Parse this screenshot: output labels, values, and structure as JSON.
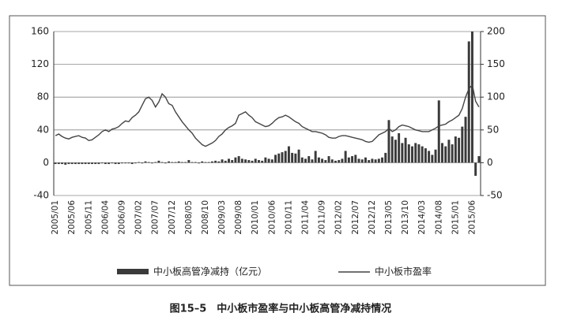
{
  "chart_data": {
    "type": "bar-line",
    "caption": "图15–5　中小板市盈率与中小板高管净减持情况",
    "categories": [
      "2005/01",
      null,
      null,
      null,
      null,
      "2005/06",
      null,
      null,
      null,
      null,
      "2005/11",
      null,
      null,
      null,
      null,
      "2006/04",
      null,
      null,
      null,
      null,
      "2006/09",
      null,
      null,
      null,
      null,
      "2007/02",
      null,
      null,
      null,
      null,
      "2007/07",
      null,
      null,
      null,
      null,
      "2007/12",
      null,
      null,
      null,
      null,
      "2008/05",
      null,
      null,
      null,
      null,
      "2008/10",
      null,
      null,
      null,
      null,
      "2009/03",
      null,
      null,
      null,
      null,
      "2009/08",
      null,
      null,
      null,
      null,
      "2010/01",
      null,
      null,
      null,
      null,
      "2010/06",
      null,
      null,
      null,
      null,
      "2010/11",
      null,
      null,
      null,
      null,
      "2011/04",
      null,
      null,
      null,
      null,
      "2011/09",
      null,
      null,
      null,
      null,
      "2012/02",
      null,
      null,
      null,
      null,
      "2012/07",
      null,
      null,
      null,
      null,
      "2012/12",
      null,
      null,
      null,
      null,
      "2013/05",
      null,
      null,
      null,
      null,
      "2013/10",
      null,
      null,
      null,
      null,
      "2014/03",
      null,
      null,
      null,
      null,
      "2014/08",
      null,
      null,
      null,
      null,
      "2015/01",
      null,
      null,
      null,
      null,
      "2015/06",
      null,
      null
    ],
    "series": [
      {
        "name": "中小板高管净减持（亿元）",
        "kind": "bar",
        "axis": "y2",
        "color": "#3a3a3a",
        "values": [
          -2,
          -2,
          -2,
          -3,
          -2,
          -2,
          -2,
          -2,
          -2,
          -2,
          -2,
          -2,
          -2,
          -2,
          -1,
          -2,
          -2,
          -1,
          -2,
          -2,
          -1,
          -1,
          -1,
          -2,
          -1,
          1,
          -1,
          2,
          1,
          -1,
          1,
          3,
          1,
          -1,
          2,
          1,
          1,
          2,
          1,
          1,
          4,
          1,
          1,
          -1,
          2,
          1,
          1,
          2,
          3,
          2,
          5,
          3,
          6,
          4,
          8,
          10,
          6,
          5,
          4,
          3,
          6,
          4,
          3,
          8,
          6,
          5,
          12,
          14,
          16,
          18,
          25,
          15,
          14,
          20,
          8,
          6,
          10,
          5,
          18,
          8,
          6,
          4,
          10,
          5,
          3,
          4,
          6,
          18,
          8,
          10,
          12,
          6,
          5,
          8,
          4,
          6,
          5,
          6,
          8,
          15,
          65,
          40,
          35,
          45,
          30,
          38,
          28,
          25,
          30,
          28,
          25,
          22,
          18,
          12,
          20,
          95,
          30,
          25,
          35,
          28,
          40,
          38,
          55,
          70,
          185,
          200,
          -20,
          10
        ]
      },
      {
        "name": "中小板市盈率",
        "kind": "line",
        "color": "#444444",
        "values": [
          33,
          35,
          32,
          30,
          29,
          31,
          32,
          33,
          31,
          30,
          27,
          28,
          31,
          34,
          38,
          40,
          38,
          41,
          42,
          44,
          48,
          51,
          50,
          55,
          58,
          62,
          70,
          78,
          80,
          76,
          68,
          74,
          84,
          80,
          72,
          70,
          62,
          56,
          50,
          45,
          40,
          36,
          30,
          26,
          22,
          20,
          22,
          24,
          27,
          32,
          35,
          40,
          43,
          45,
          48,
          58,
          60,
          62,
          58,
          55,
          50,
          48,
          46,
          44,
          45,
          48,
          52,
          55,
          56,
          58,
          56,
          53,
          50,
          48,
          44,
          42,
          40,
          38,
          38,
          37,
          36,
          34,
          31,
          30,
          30,
          32,
          33,
          33,
          32,
          31,
          30,
          29,
          28,
          26,
          25,
          26,
          30,
          34,
          36,
          38,
          42,
          38,
          40,
          44,
          46,
          45,
          44,
          42,
          40,
          39,
          38,
          38,
          38,
          40,
          42,
          45,
          46,
          47,
          50,
          52,
          55,
          58,
          66,
          80,
          90,
          95,
          75,
          68
        ]
      }
    ],
    "ylim": [
      -40,
      160
    ],
    "yticks": [
      -40,
      0,
      40,
      80,
      120,
      160
    ],
    "y2lim": [
      -50,
      200
    ],
    "y2ticks": [
      -50,
      0,
      50,
      100,
      150,
      200
    ],
    "grid": true,
    "legend": "bottom"
  }
}
